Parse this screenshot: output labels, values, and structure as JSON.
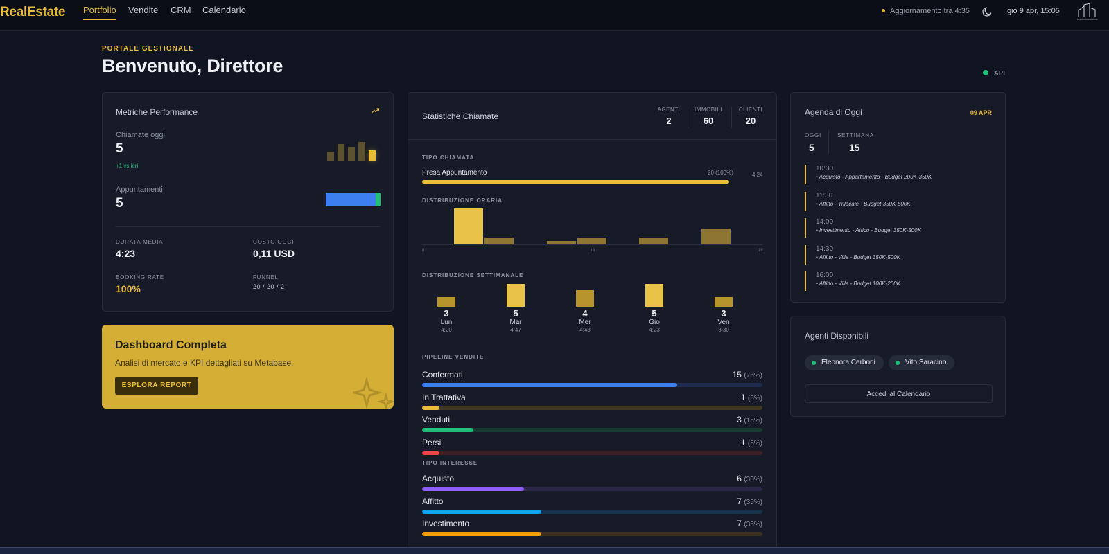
{
  "nav": {
    "logo": "RealEstate",
    "items": [
      "Portfolio",
      "Vendite",
      "CRM",
      "Calendario"
    ],
    "active": "Portfolio",
    "update_text": "Aggiornamento tra 4:35",
    "datetime": "gio 9 apr, 15:05",
    "icons": [
      "moon-icon",
      "studio-logo"
    ]
  },
  "header": {
    "eyebrow": "PORTALE GESTIONALE",
    "title": "Benvenuto, Direttore",
    "api_label": "API"
  },
  "performance": {
    "title": "Metriche Performance",
    "calls_label": "Chiamate oggi",
    "calls_value": "5",
    "calls_delta": "+1 vs ieri",
    "appointments_label": "Appuntamenti",
    "appointments_value": "5",
    "avg_duration_label": "DURATA MEDIA",
    "avg_duration_value": "4:23",
    "cost_label": "COSTO OGGI",
    "cost_value": "0,11 USD",
    "booking_label": "BOOKING RATE",
    "booking_value": "100%",
    "funnel_label": "FUNNEL",
    "funnel_value": "20 / 20 / 2",
    "mini_bars": [
      0.45,
      0.85,
      0.7,
      0.95,
      0.55
    ],
    "appointments_bar_fraction": 0.91
  },
  "promo": {
    "title": "Dashboard Completa",
    "subtitle": "Analisi di mercato e KPI dettagliati su Metabase.",
    "button": "ESPLORA REPORT"
  },
  "stats": {
    "title": "Statistiche Chiamate",
    "counters": [
      {
        "label": "AGENTI",
        "value": "2"
      },
      {
        "label": "IMMOBILI",
        "value": "60"
      },
      {
        "label": "CLIENTI",
        "value": "20"
      }
    ],
    "call_type": {
      "section": "TIPO CHIAMATA",
      "label": "Presa Appuntamento",
      "value": "20 (100%)",
      "duration": "4:24",
      "fraction": 1.0
    },
    "hourly": {
      "section": "DISTRIBUZIONE ORARIA",
      "tick_labels": [
        "8",
        "13",
        "18"
      ],
      "bars": [
        {
          "hour": 9,
          "value": 5
        },
        {
          "hour": 10,
          "value": 1
        },
        {
          "hour": 12,
          "value": 0.5
        },
        {
          "hour": 13,
          "value": 1
        },
        {
          "hour": 15,
          "value": 1
        },
        {
          "hour": 17,
          "value": 2.2
        }
      ]
    },
    "weekly": {
      "section": "DISTRIBUZIONE SETTIMANALE",
      "days": [
        {
          "name": "Lun",
          "count": "3",
          "time": "4:20"
        },
        {
          "name": "Mar",
          "count": "5",
          "time": "4:47"
        },
        {
          "name": "Mer",
          "count": "4",
          "time": "4:43"
        },
        {
          "name": "Gio",
          "count": "5",
          "time": "4:23"
        },
        {
          "name": "Ven",
          "count": "3",
          "time": "3:30"
        }
      ]
    },
    "pipeline": {
      "section": "PIPELINE VENDITE",
      "rows": [
        {
          "label": "Confermati",
          "count": "15",
          "pct": "(75%)",
          "fraction": 0.75,
          "color": "#3d7ef0",
          "track": "#1e2a4d"
        },
        {
          "label": "In Trattativa",
          "count": "1",
          "pct": "(5%)",
          "fraction": 0.05,
          "color": "#e9bd3a",
          "track": "#3d3623"
        },
        {
          "label": "Venduti",
          "count": "3",
          "pct": "(15%)",
          "fraction": 0.15,
          "color": "#1fbf7a",
          "track": "#163a31"
        },
        {
          "label": "Persi",
          "count": "1",
          "pct": "(5%)",
          "fraction": 0.05,
          "color": "#ef4444",
          "track": "#3d1f26"
        }
      ]
    },
    "interest": {
      "section": "TIPO INTERESSE",
      "rows": [
        {
          "label": "Acquisto",
          "count": "6",
          "pct": "(30%)",
          "fraction": 0.3,
          "color": "#8b5cf6",
          "track": "#2c2747"
        },
        {
          "label": "Affitto",
          "count": "7",
          "pct": "(35%)",
          "fraction": 0.35,
          "color": "#0ea5e9",
          "track": "#15324a"
        },
        {
          "label": "Investimento",
          "count": "7",
          "pct": "(35%)",
          "fraction": 0.35,
          "color": "#f59e0b",
          "track": "#3b3020"
        }
      ]
    }
  },
  "agenda": {
    "title": "Agenda di Oggi",
    "date": "09 APR",
    "today_label": "OGGI",
    "today_value": "5",
    "week_label": "SETTIMANA",
    "week_value": "15",
    "items": [
      {
        "time": "10:30",
        "desc": "• Acquisto - Appartamento - Budget 200K-350K"
      },
      {
        "time": "11:30",
        "desc": "• Affitto - Trilocale - Budget 350K-500K"
      },
      {
        "time": "14:00",
        "desc": "• Investimento - Attico - Budget 350K-500K"
      },
      {
        "time": "14:30",
        "desc": "• Affitto - Villa - Budget 350K-500K"
      },
      {
        "time": "16:00",
        "desc": "• Affitto - Villa - Budget 100K-200K"
      }
    ]
  },
  "agents": {
    "title": "Agenti Disponibili",
    "list": [
      "Eleonora Cerboni",
      "Vito Saracino"
    ],
    "calendar_button": "Accedi al Calendario"
  }
}
